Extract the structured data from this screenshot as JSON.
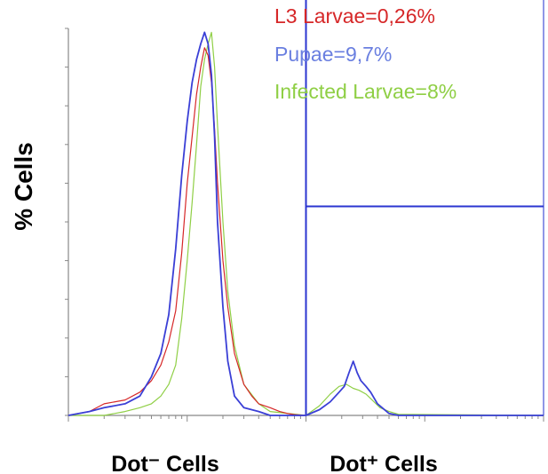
{
  "chart_data": {
    "type": "line",
    "title": "",
    "xlabel_left": "Dot⁻ Cells",
    "xlabel_right": "Dot⁺ Cells",
    "ylabel": "% Cells",
    "x_scale": "log",
    "xlim": [
      1,
      10000
    ],
    "ylim": [
      0,
      100
    ],
    "grid": false,
    "legend_placement": "top-right",
    "gate": {
      "x_min": 100,
      "x_max": 10000,
      "y_level": 54
    },
    "series": [
      {
        "name": "L3 Larvae=0,26%",
        "color": "#d62728",
        "x": [
          1,
          1.5,
          2,
          3,
          4,
          5,
          6,
          7,
          8,
          9,
          10,
          11,
          12,
          13,
          14,
          15,
          16,
          17,
          18,
          20,
          22,
          25,
          30,
          35,
          40,
          50,
          60,
          70,
          80,
          100
        ],
        "y": [
          0,
          1,
          3,
          4,
          6,
          9,
          13,
          19,
          27,
          42,
          60,
          72,
          83,
          90,
          95,
          93,
          86,
          74,
          60,
          40,
          28,
          16,
          8,
          5,
          3,
          2,
          1,
          0.5,
          0.2,
          0
        ]
      },
      {
        "name": "Pupae=9,7%",
        "color": "#3a3fd6",
        "x": [
          1,
          1.5,
          2,
          3,
          4,
          5,
          6,
          7,
          8,
          9,
          10,
          11,
          12,
          13,
          14,
          15,
          16,
          17,
          18,
          20,
          22,
          25,
          30,
          40,
          50,
          100,
          130,
          160,
          190,
          210,
          230,
          250,
          270,
          290,
          320,
          350,
          400,
          500,
          600,
          10000
        ],
        "y": [
          0,
          1,
          2,
          3,
          5,
          10,
          16,
          26,
          43,
          62,
          76,
          86,
          92,
          96,
          99,
          96,
          88,
          72,
          50,
          28,
          14,
          5,
          2,
          1,
          0,
          0,
          1.5,
          3.5,
          6,
          7.5,
          11,
          14,
          11,
          9,
          7.5,
          6,
          3,
          0.5,
          0,
          0
        ]
      },
      {
        "name": "Infected Larvae=8%",
        "color": "#8fcf45",
        "x": [
          1,
          2,
          3,
          4,
          5,
          6,
          7,
          8,
          9,
          10,
          11,
          12,
          13,
          14,
          15,
          16,
          17,
          18,
          20,
          22,
          25,
          30,
          40,
          50,
          100,
          130,
          160,
          190,
          220,
          250,
          280,
          320,
          360,
          420,
          500,
          600,
          10000
        ],
        "y": [
          0,
          0,
          1,
          2,
          3,
          5,
          8,
          13,
          25,
          40,
          55,
          70,
          85,
          92,
          96,
          99,
          90,
          75,
          50,
          32,
          18,
          8,
          3,
          1,
          0,
          2.5,
          5.5,
          7.5,
          8,
          7,
          6.5,
          5.5,
          4,
          2,
          1,
          0.3,
          0
        ]
      }
    ]
  }
}
